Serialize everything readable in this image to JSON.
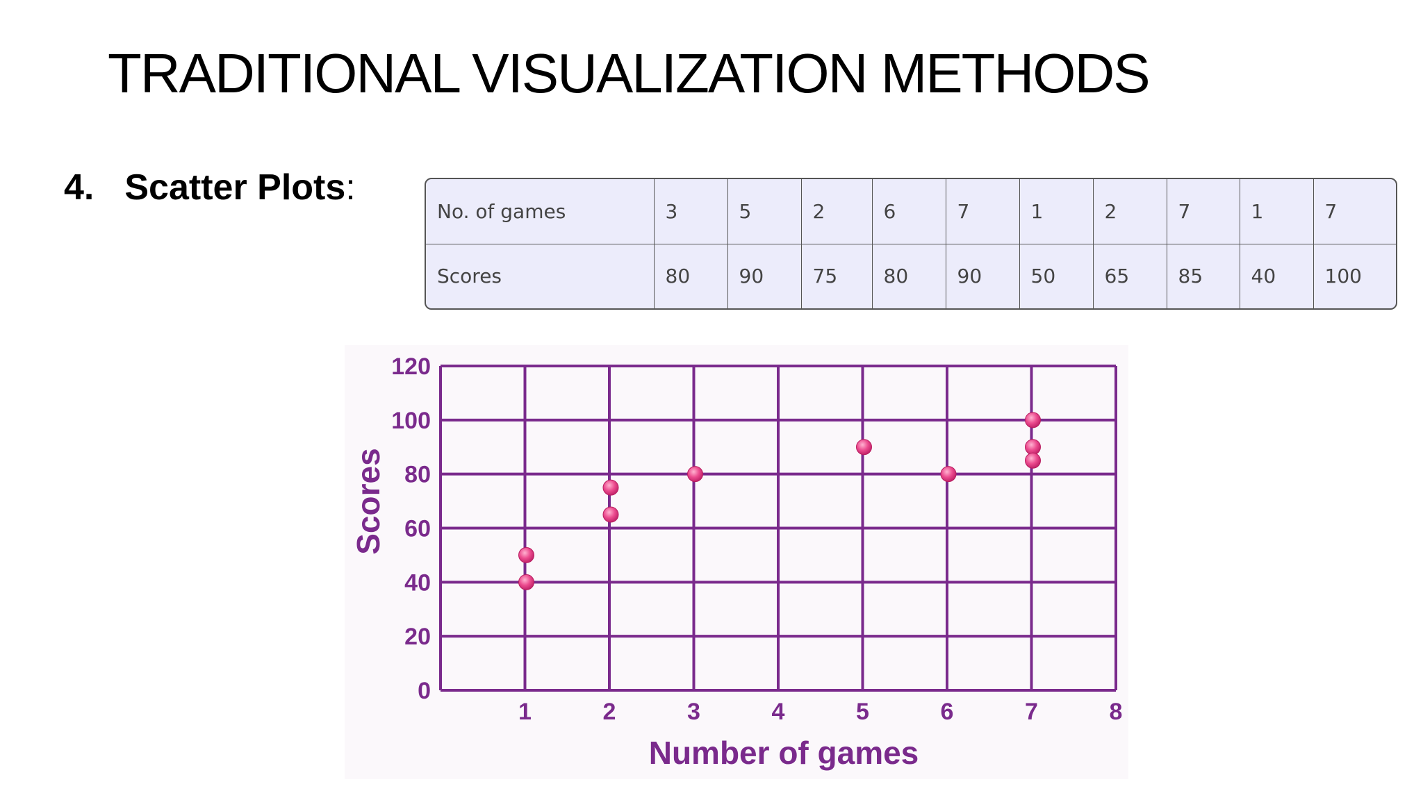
{
  "slide": {
    "title": "TRADITIONAL VISUALIZATION METHODS",
    "section_number": "4.",
    "section_label": "Scatter Plots",
    "section_colon": ":"
  },
  "table": {
    "rows": [
      {
        "header": "No. of games",
        "cells": [
          "3",
          "5",
          "2",
          "6",
          "7",
          "1",
          "2",
          "7",
          "1",
          "7"
        ]
      },
      {
        "header": "Scores",
        "cells": [
          "80",
          "90",
          "75",
          "80",
          "90",
          "50",
          "65",
          "85",
          "40",
          "100"
        ]
      }
    ]
  },
  "chart_data": {
    "type": "scatter",
    "title": "",
    "xlabel": "Number of games",
    "ylabel": "Scores",
    "xlim": [
      0,
      8
    ],
    "ylim": [
      0,
      120
    ],
    "x_ticks": [
      "1",
      "2",
      "3",
      "4",
      "5",
      "6",
      "7",
      "8"
    ],
    "y_ticks": [
      "0",
      "20",
      "40",
      "60",
      "80",
      "100",
      "120"
    ],
    "grid": true,
    "colors": {
      "grid": "#7a2a8c",
      "text": "#7a2a8c",
      "point": "#e8408a"
    },
    "points": [
      {
        "x": 3,
        "y": 80
      },
      {
        "x": 5,
        "y": 90
      },
      {
        "x": 2,
        "y": 75
      },
      {
        "x": 6,
        "y": 80
      },
      {
        "x": 7,
        "y": 90
      },
      {
        "x": 1,
        "y": 50
      },
      {
        "x": 2,
        "y": 65
      },
      {
        "x": 7,
        "y": 85
      },
      {
        "x": 1,
        "y": 40
      },
      {
        "x": 7,
        "y": 100
      }
    ]
  }
}
